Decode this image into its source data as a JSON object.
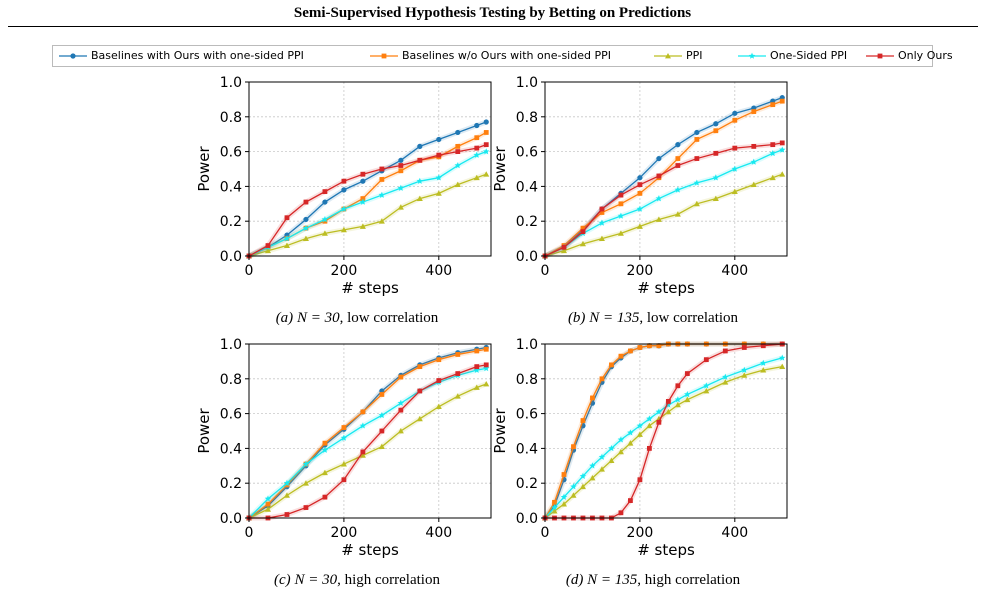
{
  "page_title": "Semi-Supervised Hypothesis Testing by Betting on Predictions",
  "legend": [
    {
      "label": "Baselines with Ours with one-sided PPI",
      "color": "#1f77b4",
      "marker": "circle"
    },
    {
      "label": "Baselines w/o Ours with one-sided PPI",
      "color": "#ff7f0e",
      "marker": "square"
    },
    {
      "label": "PPI",
      "color": "#bcbd22",
      "marker": "triangle"
    },
    {
      "label": "One-Sided PPI",
      "color": "#17e9f0",
      "marker": "star"
    },
    {
      "label": "Only Ours",
      "color": "#d62728",
      "marker": "square"
    }
  ],
  "chart_data": [
    {
      "type": "line",
      "caption_prefix": "(a)",
      "caption_formula": "N = 30",
      "caption_suffix": ", low correlation",
      "xlabel": "# steps",
      "ylabel": "Power",
      "xlim": [
        0,
        510
      ],
      "ylim": [
        0,
        1.0
      ],
      "xticks": [
        0,
        200,
        400
      ],
      "yticks": [
        "0.0",
        "0.2",
        "0.4",
        "0.6",
        "0.8",
        "1.0"
      ],
      "grid": true,
      "x": [
        0,
        40,
        80,
        120,
        160,
        200,
        240,
        280,
        320,
        360,
        400,
        440,
        480,
        500
      ],
      "series": [
        {
          "name": "Baselines with Ours with one-sided PPI",
          "values": [
            0,
            0.05,
            0.12,
            0.21,
            0.31,
            0.38,
            0.43,
            0.49,
            0.55,
            0.63,
            0.67,
            0.71,
            0.75,
            0.77
          ]
        },
        {
          "name": "Baselines w/o Ours with one-sided PPI",
          "values": [
            0,
            0.05,
            0.1,
            0.16,
            0.2,
            0.27,
            0.33,
            0.44,
            0.49,
            0.55,
            0.57,
            0.63,
            0.68,
            0.71
          ]
        },
        {
          "name": "PPI",
          "values": [
            0,
            0.03,
            0.06,
            0.1,
            0.13,
            0.15,
            0.17,
            0.2,
            0.28,
            0.33,
            0.36,
            0.41,
            0.45,
            0.47
          ]
        },
        {
          "name": "One-Sided PPI",
          "values": [
            0,
            0.05,
            0.1,
            0.16,
            0.21,
            0.27,
            0.31,
            0.35,
            0.39,
            0.43,
            0.45,
            0.52,
            0.58,
            0.6
          ]
        },
        {
          "name": "Only Ours",
          "values": [
            0,
            0.06,
            0.22,
            0.31,
            0.37,
            0.43,
            0.47,
            0.5,
            0.52,
            0.55,
            0.58,
            0.6,
            0.62,
            0.64
          ]
        }
      ]
    },
    {
      "type": "line",
      "caption_prefix": "(b)",
      "caption_formula": "N = 135",
      "caption_suffix": ", low correlation",
      "xlabel": "# steps",
      "ylabel": "Power",
      "xlim": [
        0,
        510
      ],
      "ylim": [
        0,
        1.0
      ],
      "xticks": [
        0,
        200,
        400
      ],
      "yticks": [
        "0.0",
        "0.2",
        "0.4",
        "0.6",
        "0.8",
        "1.0"
      ],
      "grid": true,
      "x": [
        0,
        40,
        80,
        120,
        160,
        200,
        240,
        280,
        320,
        360,
        400,
        440,
        480,
        500
      ],
      "series": [
        {
          "name": "Baselines with Ours with one-sided PPI",
          "values": [
            0,
            0.05,
            0.15,
            0.27,
            0.36,
            0.45,
            0.56,
            0.64,
            0.71,
            0.76,
            0.82,
            0.85,
            0.89,
            0.91
          ]
        },
        {
          "name": "Baselines w/o Ours with one-sided PPI",
          "values": [
            0,
            0.06,
            0.16,
            0.25,
            0.3,
            0.36,
            0.45,
            0.56,
            0.67,
            0.72,
            0.78,
            0.83,
            0.87,
            0.89
          ]
        },
        {
          "name": "PPI",
          "values": [
            0,
            0.03,
            0.07,
            0.1,
            0.13,
            0.17,
            0.21,
            0.24,
            0.3,
            0.33,
            0.37,
            0.41,
            0.45,
            0.47
          ]
        },
        {
          "name": "One-Sided PPI",
          "values": [
            0,
            0.05,
            0.13,
            0.19,
            0.23,
            0.27,
            0.33,
            0.38,
            0.42,
            0.45,
            0.5,
            0.54,
            0.59,
            0.61
          ]
        },
        {
          "name": "Only Ours",
          "values": [
            0,
            0.05,
            0.14,
            0.27,
            0.35,
            0.41,
            0.46,
            0.52,
            0.56,
            0.59,
            0.62,
            0.63,
            0.64,
            0.65
          ]
        }
      ]
    },
    {
      "type": "line",
      "caption_prefix": "(c)",
      "caption_formula": "N = 30",
      "caption_suffix": ", high correlation",
      "xlabel": "# steps",
      "ylabel": "Power",
      "xlim": [
        0,
        510
      ],
      "ylim": [
        0,
        1.0
      ],
      "xticks": [
        0,
        200,
        400
      ],
      "yticks": [
        "0.0",
        "0.2",
        "0.4",
        "0.6",
        "0.8",
        "1.0"
      ],
      "grid": true,
      "x": [
        0,
        40,
        80,
        120,
        160,
        200,
        240,
        280,
        320,
        360,
        400,
        440,
        480,
        500
      ],
      "series": [
        {
          "name": "Baselines with Ours with one-sided PPI",
          "values": [
            0,
            0.07,
            0.18,
            0.3,
            0.42,
            0.51,
            0.61,
            0.73,
            0.82,
            0.88,
            0.92,
            0.95,
            0.97,
            0.98
          ]
        },
        {
          "name": "Baselines w/o Ours with one-sided PPI",
          "values": [
            0,
            0.08,
            0.19,
            0.31,
            0.43,
            0.52,
            0.61,
            0.71,
            0.81,
            0.87,
            0.91,
            0.94,
            0.96,
            0.97
          ]
        },
        {
          "name": "PPI",
          "values": [
            0,
            0.05,
            0.13,
            0.2,
            0.26,
            0.31,
            0.36,
            0.41,
            0.5,
            0.57,
            0.64,
            0.7,
            0.75,
            0.77
          ]
        },
        {
          "name": "One-Sided PPI",
          "values": [
            0,
            0.11,
            0.2,
            0.31,
            0.39,
            0.46,
            0.53,
            0.59,
            0.66,
            0.73,
            0.78,
            0.82,
            0.85,
            0.86
          ]
        },
        {
          "name": "Only Ours",
          "values": [
            0,
            0,
            0.02,
            0.06,
            0.12,
            0.22,
            0.38,
            0.5,
            0.62,
            0.73,
            0.79,
            0.83,
            0.87,
            0.88
          ]
        }
      ]
    },
    {
      "type": "line",
      "caption_prefix": "(d)",
      "caption_formula": "N = 135",
      "caption_suffix": ", high correlation",
      "xlabel": "# steps",
      "ylabel": "Power",
      "xlim": [
        0,
        510
      ],
      "ylim": [
        0,
        1.0
      ],
      "xticks": [
        0,
        200,
        400
      ],
      "yticks": [
        "0.0",
        "0.2",
        "0.4",
        "0.6",
        "0.8",
        "1.0"
      ],
      "grid": true,
      "x": [
        0,
        20,
        40,
        60,
        80,
        100,
        120,
        140,
        160,
        180,
        200,
        220,
        240,
        260,
        280,
        300,
        340,
        380,
        420,
        460,
        500
      ],
      "series": [
        {
          "name": "Baselines with Ours with one-sided PPI",
          "values": [
            0,
            0.07,
            0.22,
            0.39,
            0.53,
            0.66,
            0.78,
            0.87,
            0.92,
            0.96,
            0.98,
            0.99,
            0.99,
            1.0,
            1.0,
            1.0,
            1.0,
            1.0,
            1.0,
            1.0,
            1.0
          ]
        },
        {
          "name": "Baselines w/o Ours with one-sided PPI",
          "values": [
            0,
            0.09,
            0.25,
            0.41,
            0.56,
            0.69,
            0.8,
            0.88,
            0.93,
            0.96,
            0.98,
            0.99,
            0.99,
            1.0,
            1.0,
            1.0,
            1.0,
            1.0,
            1.0,
            1.0,
            1.0
          ]
        },
        {
          "name": "PPI",
          "values": [
            0,
            0.04,
            0.08,
            0.13,
            0.18,
            0.23,
            0.28,
            0.33,
            0.38,
            0.43,
            0.48,
            0.53,
            0.57,
            0.61,
            0.65,
            0.68,
            0.73,
            0.78,
            0.82,
            0.85,
            0.87
          ]
        },
        {
          "name": "One-Sided PPI",
          "values": [
            0,
            0.06,
            0.12,
            0.18,
            0.24,
            0.3,
            0.35,
            0.4,
            0.45,
            0.49,
            0.53,
            0.57,
            0.61,
            0.65,
            0.68,
            0.71,
            0.76,
            0.81,
            0.85,
            0.89,
            0.92
          ]
        },
        {
          "name": "Only Ours",
          "values": [
            0,
            0,
            0,
            0,
            0,
            0,
            0,
            0,
            0.03,
            0.1,
            0.22,
            0.4,
            0.55,
            0.67,
            0.76,
            0.83,
            0.91,
            0.96,
            0.98,
            0.99,
            1.0
          ]
        }
      ]
    }
  ]
}
